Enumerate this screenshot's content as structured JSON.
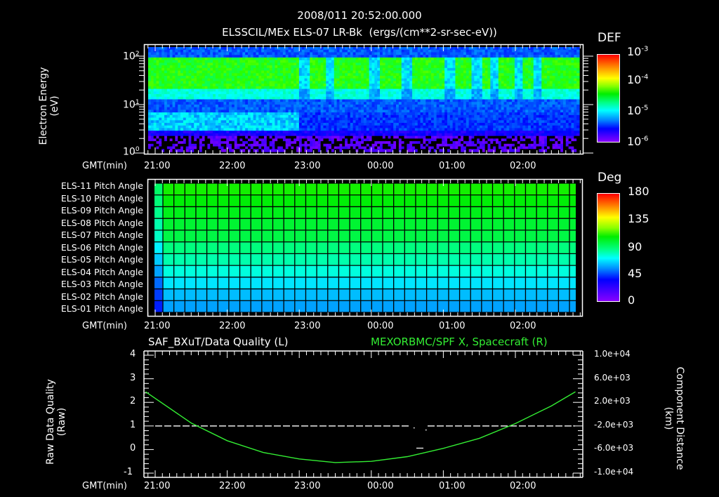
{
  "header": {
    "timestamp": "2008/011 20:52:00.000",
    "title": "ELSSCIL/MEx ELS-07 LR-Bk  (ergs/(cm**2-sr-sec-eV))"
  },
  "colors": {
    "background": "#000000",
    "axis": "#ffffff",
    "green_trace": "#33ee33",
    "right_title": "#33ee33"
  },
  "time_axis": {
    "label": "GMT(min)",
    "ticks": [
      "21:00",
      "22:00",
      "23:00",
      "00:00",
      "01:00",
      "02:00"
    ]
  },
  "panel1": {
    "ylabel_line1": "Electron Energy",
    "ylabel_line2": "(eV)",
    "yticks": [
      {
        "base": "10",
        "exp": "2"
      },
      {
        "base": "10",
        "exp": "1"
      },
      {
        "base": "10",
        "exp": "0"
      }
    ],
    "colorbar": {
      "title": "DEF",
      "ticks": [
        {
          "base": "10",
          "exp": "-3"
        },
        {
          "base": "10",
          "exp": "-4"
        },
        {
          "base": "10",
          "exp": "-5"
        },
        {
          "base": "10",
          "exp": "-6"
        }
      ]
    }
  },
  "panel2": {
    "rows": [
      "ELS-11 Pitch Angle",
      "ELS-10 Pitch Angle",
      "ELS-09 Pitch Angle",
      "ELS-08 Pitch Angle",
      "ELS-07 Pitch Angle",
      "ELS-06 Pitch Angle",
      "ELS-05 Pitch Angle",
      "ELS-04 Pitch Angle",
      "ELS-03 Pitch Angle",
      "ELS-02 Pitch Angle",
      "ELS-01 Pitch Angle"
    ],
    "colorbar": {
      "title": "Deg",
      "ticks": [
        "180",
        "135",
        "90",
        "45",
        "0"
      ]
    }
  },
  "panel3": {
    "left_title": "SAF_BXuT/Data Quality (L)",
    "right_title": "MEXORBMC/SPF X, Spacecraft (R)",
    "ylabel_left_line1": "Raw Data Quality",
    "ylabel_left_line2": "(Raw)",
    "ylabel_right_line1": "Component Distance",
    "ylabel_right_line2": "(km)",
    "left_ticks": [
      "4",
      "3",
      "2",
      "1",
      "0",
      "-1"
    ],
    "right_ticks": [
      "1.0e+04",
      "6.0e+03",
      "2.0e+03",
      "-2.0e+03",
      "-6.0e+03",
      "-1.0e+04"
    ]
  },
  "chart_data": [
    {
      "type": "heatmap",
      "title": "ELSSCIL/MEx ELS-07 LR-Bk (ergs/(cm**2-sr-sec-eV))",
      "subtitle": "2008/011 20:52:00.000",
      "xlabel": "GMT(min)",
      "ylabel": "Electron Energy (eV)",
      "x_ticks": [
        "21:00",
        "22:00",
        "23:00",
        "00:00",
        "01:00",
        "02:00"
      ],
      "y_scale": "log",
      "ylim": [
        1,
        150
      ],
      "y_ticks": [
        1,
        10,
        100
      ],
      "colorbar": {
        "label": "DEF",
        "scale": "log",
        "range": [
          1e-06,
          0.001
        ],
        "ticks": [
          1e-06,
          1e-05,
          0.0001,
          0.001
        ]
      },
      "description": "Band of peak DEF (~1e-4, green) between ~20-90 eV across the entire interval, secondary cyan band ~5-8 eV early (21:00-22:30), low counts (purple/black) below ~3 eV; intermittent dropouts near 22:40, 23:10, 00:10, 01:00-02:10."
    },
    {
      "type": "heatmap",
      "title": "Pitch Angle",
      "xlabel": "GMT(min)",
      "categories": [
        "ELS-11",
        "ELS-10",
        "ELS-09",
        "ELS-08",
        "ELS-07",
        "ELS-06",
        "ELS-05",
        "ELS-04",
        "ELS-03",
        "ELS-02",
        "ELS-01"
      ],
      "x_ticks": [
        "21:00",
        "22:00",
        "23:00",
        "00:00",
        "01:00",
        "02:00"
      ],
      "colorbar": {
        "label": "Deg",
        "range": [
          0,
          180
        ],
        "ticks": [
          0,
          45,
          90,
          135,
          180
        ]
      },
      "values_deg_approx": [
        110,
        107,
        104,
        100,
        97,
        88,
        82,
        76,
        68,
        62,
        58
      ],
      "description": "Pitch angles nearly constant over the interval; slightly lower values in the first few minutes."
    },
    {
      "type": "line",
      "title": "SAF_BXuT/Data Quality (L) ; MEXORBMC/SPF X, Spacecraft (R)",
      "xlabel": "GMT(min)",
      "x_ticks": [
        "21:00",
        "22:00",
        "23:00",
        "00:00",
        "01:00",
        "02:00"
      ],
      "series": [
        {
          "name": "SAF_BXuT/Data Quality (L)",
          "axis": "left",
          "ylim": [
            -1,
            4
          ],
          "x": [
            "21:00",
            "00:35",
            "00:45",
            "02:50"
          ],
          "values": [
            1,
            1,
            1,
            1
          ],
          "note": "constant value 1 with a gap between ~00:30 and ~00:45"
        },
        {
          "name": "MEXORBMC/SPF X, Spacecraft (R)",
          "axis": "right",
          "ylim": [
            -10000,
            10000
          ],
          "x": [
            "20:52",
            "21:30",
            "22:00",
            "22:30",
            "23:00",
            "23:30",
            "00:00",
            "00:30",
            "01:00",
            "01:30",
            "02:00",
            "02:30",
            "02:50"
          ],
          "values": [
            3800,
            -1500,
            -4500,
            -6500,
            -7600,
            -8200,
            -8000,
            -7200,
            -5800,
            -4100,
            -1600,
            1400,
            3800
          ]
        }
      ],
      "right_ticks": [
        "1.0e+04",
        "6.0e+03",
        "2.0e+03",
        "-2.0e+03",
        "-6.0e+03",
        "-1.0e+04"
      ],
      "left_ticks": [
        4,
        3,
        2,
        1,
        0,
        -1
      ]
    }
  ]
}
